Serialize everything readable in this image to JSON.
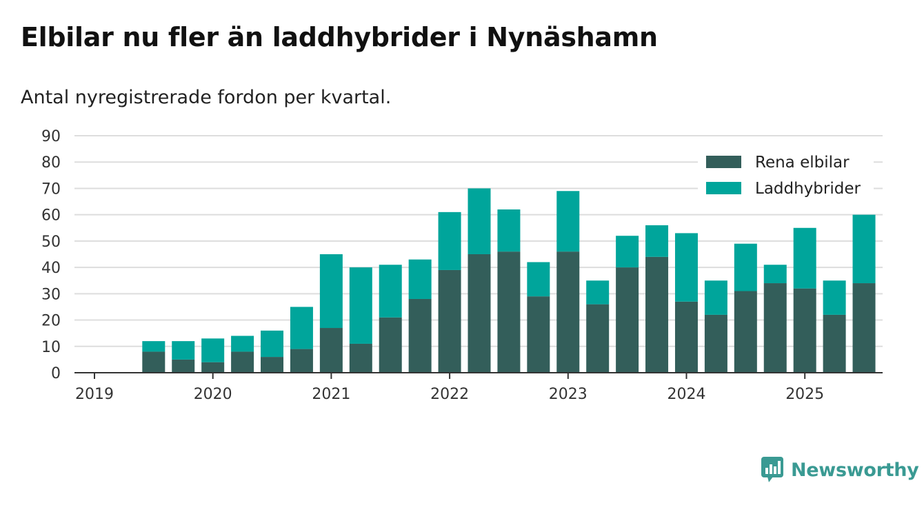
{
  "header": {
    "title": "Elbilar nu fler än laddhybrider i Nynäshamn",
    "subtitle": "Antal nyregistrerade fordon per kvartal."
  },
  "brand": {
    "name": "Newsworthy",
    "icon": "newsworthy-logo-icon",
    "color": "#3a9a93"
  },
  "colors": {
    "elbilar": "#335e5a",
    "laddhybrider": "#00a59b",
    "grid": "#dddddd",
    "axis": "#333333"
  },
  "chart_data": {
    "type": "bar",
    "stacked": true,
    "categories": [
      "2019-Q2",
      "2019-Q3",
      "2019-Q4",
      "2020-Q1",
      "2020-Q2",
      "2020-Q3",
      "2020-Q4",
      "2021-Q1",
      "2021-Q2",
      "2021-Q3",
      "2021-Q4",
      "2022-Q1",
      "2022-Q2",
      "2022-Q3",
      "2022-Q4",
      "2023-Q1",
      "2023-Q2",
      "2023-Q3",
      "2023-Q4",
      "2024-Q1",
      "2024-Q2",
      "2024-Q3",
      "2024-Q4",
      "2025-Q1",
      "2025-Q2"
    ],
    "series": [
      {
        "name": "Rena elbilar",
        "values": [
          8,
          5,
          4,
          8,
          6,
          9,
          17,
          11,
          21,
          28,
          39,
          45,
          46,
          29,
          46,
          26,
          40,
          44,
          27,
          22,
          31,
          34,
          32,
          22,
          34
        ]
      },
      {
        "name": "Laddhybrider",
        "values": [
          4,
          7,
          9,
          6,
          10,
          16,
          28,
          29,
          20,
          15,
          22,
          25,
          16,
          13,
          23,
          9,
          12,
          12,
          26,
          13,
          18,
          7,
          23,
          13,
          26
        ]
      }
    ],
    "xticks": [
      "2019",
      "2020",
      "2021",
      "2022",
      "2023",
      "2024",
      "2025"
    ],
    "yticks": [
      0,
      10,
      20,
      30,
      40,
      50,
      60,
      70,
      80,
      90
    ],
    "ylim": [
      0,
      90
    ],
    "grid": true,
    "legend": "top-right"
  }
}
